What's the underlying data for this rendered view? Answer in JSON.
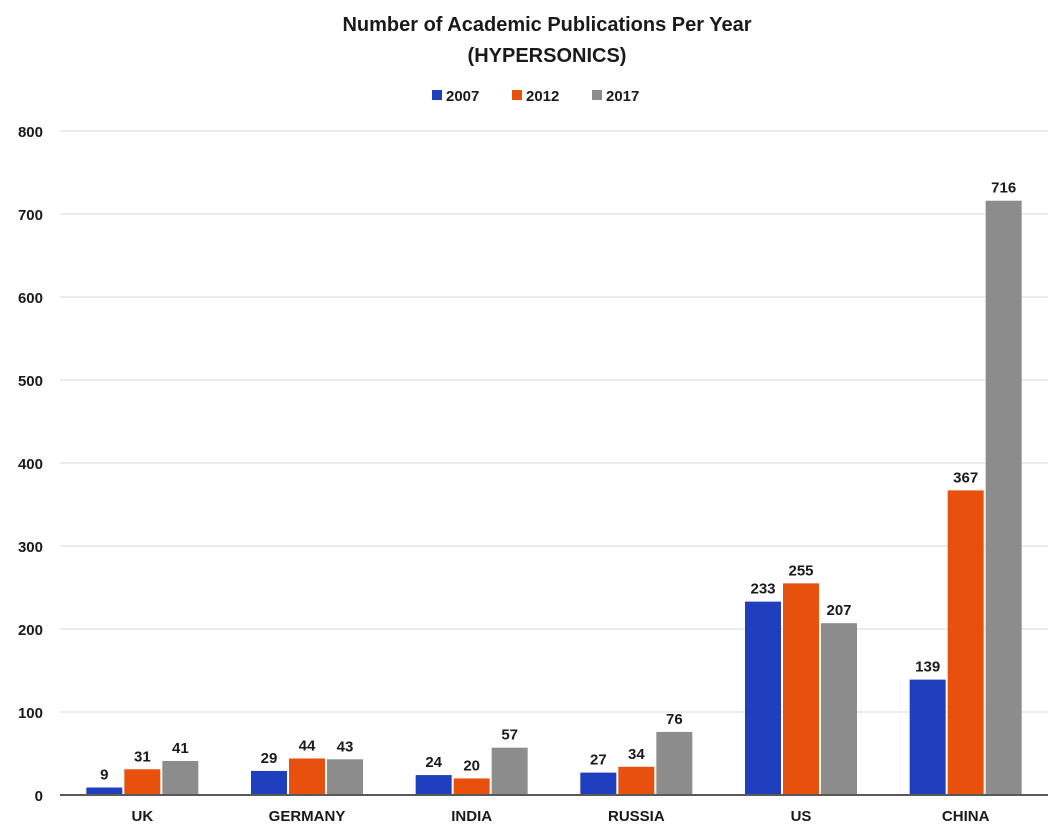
{
  "chart_data": {
    "type": "bar",
    "title": "Number of Academic Publications Per Year",
    "subtitle": "(HYPERSONICS)",
    "categories": [
      "UK",
      "GERMANY",
      "INDIA",
      "RUSSIA",
      "US",
      "CHINA"
    ],
    "series": [
      {
        "name": "2007",
        "color": "#1f3fbf",
        "values": [
          9,
          29,
          24,
          27,
          233,
          139
        ]
      },
      {
        "name": "2012",
        "color": "#e8500e",
        "values": [
          31,
          44,
          20,
          34,
          255,
          367
        ]
      },
      {
        "name": "2017",
        "color": "#8c8c8c",
        "values": [
          41,
          43,
          57,
          76,
          207,
          716
        ]
      }
    ],
    "ylim": [
      0,
      800
    ],
    "yticks": [
      0,
      100,
      200,
      300,
      400,
      500,
      600,
      700,
      800
    ],
    "ytick_labels": [
      "0",
      "100",
      "200",
      "300",
      "400",
      "500",
      "600",
      "700",
      "800"
    ],
    "grid": true,
    "legend_position": "top-center",
    "data_labels": true,
    "xlabel": "",
    "ylabel": ""
  }
}
